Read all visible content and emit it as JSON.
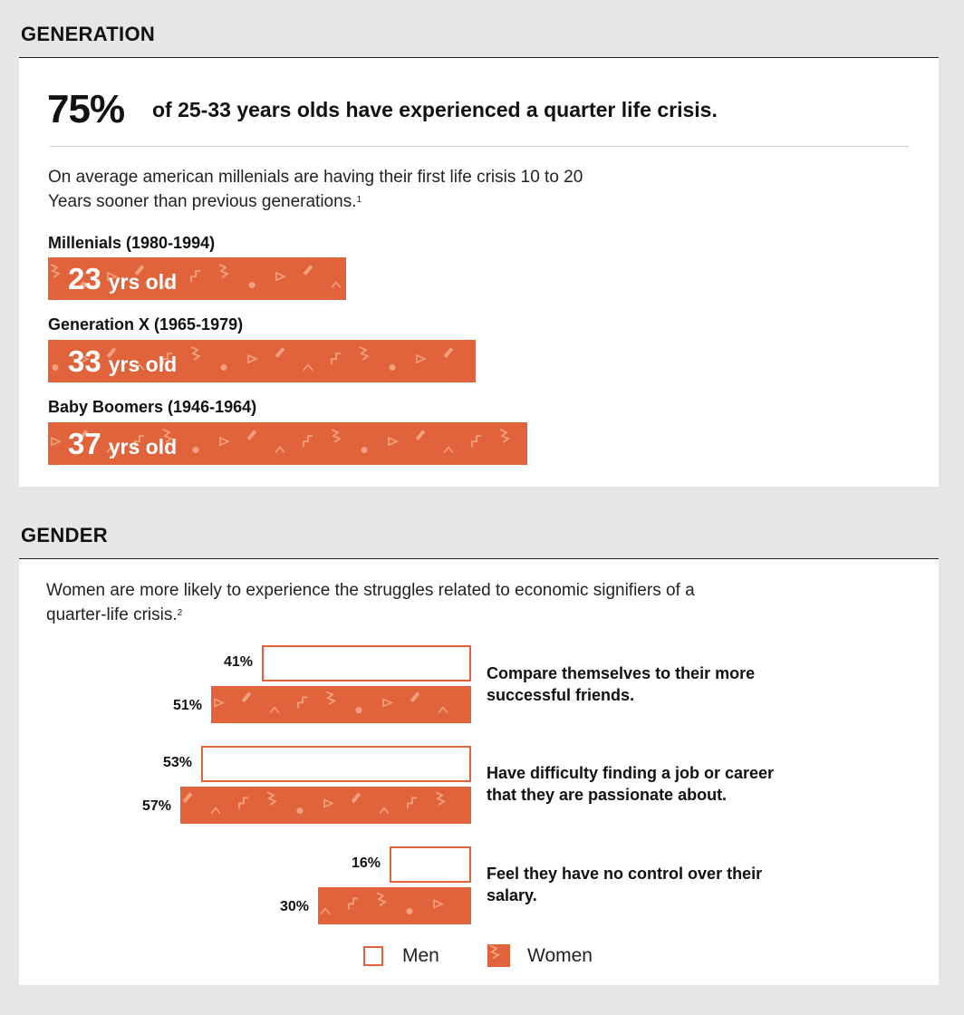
{
  "generation": {
    "section_title": "GENERATION",
    "headline_pct": "75%",
    "headline_text": "of 25-33 years olds have experienced a quarter life crisis.",
    "paragraph_line1": "On average american millenials are having their first life crisis 10 to 20",
    "paragraph_line2": "Years sooner than previous generations.",
    "footnote": "1",
    "unit": "yrs old"
  },
  "gender": {
    "section_title": "GENDER",
    "paragraph_line1": "Women are more likely to experience the struggles related to economic signifiers of a",
    "paragraph_line2": "quarter-life crisis.",
    "footnote": "2"
  },
  "legend": {
    "men": "Men",
    "women": "Women"
  },
  "colors": {
    "accent": "#e0633b",
    "background": "#e6e6e6",
    "card": "#ffffff",
    "pattern": "#f2a07f"
  },
  "chart_data": [
    {
      "type": "bar",
      "categories": [
        "Millenials (1980-1994)",
        "Generation X (1965-1979)",
        "Baby Boomers (1946-1964)"
      ],
      "values": [
        23,
        33,
        37
      ],
      "value_labels": [
        "23",
        "33",
        "37"
      ]
    },
    {
      "type": "bar",
      "categories": [
        "Compare themselves to their more successful friends.",
        "Have difficulty finding a job or career that they are passionate about.",
        "Feel they have no control over their salary."
      ],
      "category_lines": [
        [
          "Compare themselves to their more",
          "successful friends."
        ],
        [
          "Have difficulty finding a job or career",
          "that they are passionate about."
        ],
        [
          "Feel they have no control over their",
          "salary."
        ]
      ],
      "series": [
        {
          "name": "Men",
          "values": [
            41,
            53,
            16
          ],
          "labels": [
            "41%",
            "53%",
            "16%"
          ]
        },
        {
          "name": "Women",
          "values": [
            51,
            57,
            30
          ],
          "labels": [
            "51%",
            "57%",
            "30%"
          ]
        }
      ]
    }
  ]
}
